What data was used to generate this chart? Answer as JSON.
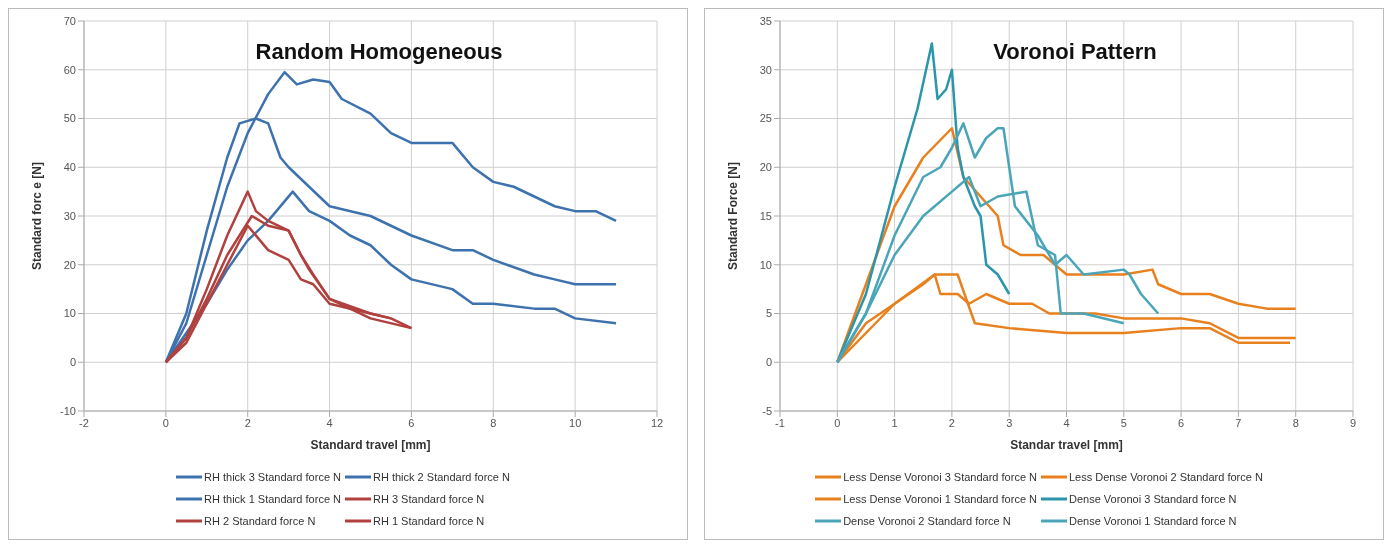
{
  "chart_data": [
    {
      "type": "line",
      "title": "Random Homogeneous",
      "xlabel": "Standard travel [mm]",
      "ylabel": "Standard forc e [N]",
      "xlim": [
        -2,
        12
      ],
      "xticks": [
        -2,
        0,
        2,
        4,
        6,
        8,
        10,
        12
      ],
      "ylim": [
        -10,
        70
      ],
      "yticks": [
        -10,
        0,
        10,
        20,
        30,
        40,
        50,
        60,
        70
      ],
      "grid": true,
      "legend": "bottom",
      "marker": "none",
      "series": [
        {
          "name": "RH thick 3 Standard force N",
          "color": "#3d72ae",
          "x": [
            0,
            0.5,
            1,
            1.5,
            2,
            2.5,
            2.9,
            3.2,
            3.6,
            4,
            4.3,
            5,
            5.5,
            6,
            7,
            7.5,
            8,
            8.5,
            9,
            9.5,
            10,
            10.5,
            11
          ],
          "values": [
            0,
            8,
            22,
            36,
            47,
            55,
            59.5,
            57,
            58,
            57.5,
            54,
            51,
            47,
            45,
            45,
            40,
            37,
            36,
            34,
            32,
            31,
            31,
            29
          ]
        },
        {
          "name": "RH thick 2 Standard force N",
          "color": "#3d72ae",
          "x": [
            0,
            0.5,
            1,
            1.5,
            1.8,
            2.2,
            2.5,
            2.8,
            3,
            3.5,
            4,
            5,
            5.5,
            6,
            7,
            7.5,
            8,
            9,
            9.5,
            10,
            11
          ],
          "values": [
            0,
            10,
            27,
            42,
            49,
            50,
            49,
            42,
            40,
            36,
            32,
            30,
            28,
            26,
            23,
            23,
            21,
            18,
            17,
            16,
            16
          ]
        },
        {
          "name": "RH thick 1 Standard force N",
          "color": "#3d72ae",
          "x": [
            0,
            0.5,
            1,
            1.5,
            2,
            2.5,
            3.1,
            3.5,
            4,
            4.5,
            5,
            5.5,
            6,
            7,
            7.5,
            8,
            9,
            9.5,
            10,
            11
          ],
          "values": [
            0,
            6,
            12,
            19,
            25,
            29,
            35,
            31,
            29,
            26,
            24,
            20,
            17,
            15,
            12,
            12,
            11,
            11,
            9,
            8
          ]
        },
        {
          "name": "RH 3 Standard force N",
          "color": "#b0413e",
          "x": [
            0,
            0.5,
            1,
            1.5,
            2,
            2.2,
            2.5,
            3,
            3.3,
            3.5,
            4,
            5,
            5.5,
            6
          ],
          "values": [
            0,
            5,
            15,
            26,
            35,
            31,
            29,
            27,
            22,
            19,
            13,
            10,
            9,
            7
          ]
        },
        {
          "name": "RH 2 Standard force N",
          "color": "#b0413e",
          "x": [
            0,
            0.5,
            1,
            1.5,
            2.1,
            2.5,
            3,
            3.3,
            3.6,
            4,
            5,
            6
          ],
          "values": [
            0,
            5,
            13,
            22,
            30,
            28,
            27,
            22,
            18,
            13,
            9,
            7
          ]
        },
        {
          "name": "RH 1 Standard force N",
          "color": "#b0413e",
          "x": [
            0,
            0.5,
            1,
            1.5,
            2,
            2.3,
            2.5,
            3,
            3.3,
            3.6,
            4,
            5,
            5.5
          ],
          "values": [
            0,
            4,
            12,
            20,
            28,
            25,
            23,
            21,
            17,
            16,
            12,
            10,
            9
          ]
        }
      ]
    },
    {
      "type": "line",
      "title": "Voronoi Pattern",
      "xlabel": "Standar travel [mm]",
      "ylabel": "Standard Force [N]",
      "xlim": [
        -1,
        9
      ],
      "xticks": [
        -1,
        0,
        1,
        2,
        3,
        4,
        5,
        6,
        7,
        8,
        9
      ],
      "ylim": [
        -5,
        35
      ],
      "yticks": [
        -5,
        0,
        5,
        10,
        15,
        20,
        25,
        30,
        35
      ],
      "grid": true,
      "legend": "bottom",
      "marker": "none",
      "series": [
        {
          "name": "Less Dense Voronoi 3 Standard force N",
          "color": "#e8801e",
          "x": [
            0,
            0.5,
            1,
            1.5,
            2,
            2.2,
            2.5,
            2.8,
            2.9,
            3.2,
            3.6,
            3.8,
            4,
            4.5,
            5,
            5.5,
            5.6,
            6,
            6.5,
            7,
            7.5,
            8
          ],
          "values": [
            0,
            8,
            16,
            21,
            24,
            19,
            17,
            15,
            12,
            11,
            11,
            10,
            9,
            9,
            9,
            9.5,
            8,
            7,
            7,
            6,
            5.5,
            5.5
          ]
        },
        {
          "name": "Less Dense Voronoi 2 Standard force N",
          "color": "#e8801e",
          "x": [
            0,
            0.5,
            1,
            1.5,
            1.7,
            1.8,
            2.1,
            2.3,
            2.6,
            3,
            3.4,
            3.7,
            4.5,
            5,
            6,
            6.5,
            7,
            8
          ],
          "values": [
            0,
            3,
            6,
            8,
            9,
            7,
            7,
            6,
            7,
            6,
            6,
            5,
            5,
            4.5,
            4.5,
            4,
            2.5,
            2.5
          ]
        },
        {
          "name": "Less Dense Voronoi 1 Standard force N",
          "color": "#e8801e",
          "x": [
            0,
            0.5,
            1,
            1.7,
            2.1,
            2.4,
            3,
            4,
            5,
            6,
            6.5,
            7,
            7.5,
            7.9
          ],
          "values": [
            0,
            4,
            6,
            9,
            9,
            4,
            3.5,
            3,
            3,
            3.5,
            3.5,
            2,
            2,
            2
          ]
        },
        {
          "name": "Dense Voronoi 3 Standard force N",
          "color": "#2b96ab",
          "x": [
            0,
            0.5,
            1,
            1.4,
            1.65,
            1.75,
            1.9,
            2,
            2.1,
            2.2,
            2.4,
            2.5,
            2.6,
            2.8,
            3
          ],
          "values": [
            0,
            7,
            18,
            26,
            32.7,
            27,
            28,
            30,
            22,
            19,
            16,
            15,
            10,
            9,
            7
          ]
        },
        {
          "name": "Dense Voronoi 2 Standard force N",
          "color": "#4aa5b9",
          "x": [
            0,
            0.5,
            1,
            1.5,
            1.8,
            2,
            2.2,
            2.4,
            2.6,
            2.8,
            2.9,
            3,
            3.1,
            3.5,
            3.8,
            4,
            4.3,
            5,
            5.1,
            5.3,
            5.6
          ],
          "values": [
            0,
            5,
            13,
            19,
            20,
            22,
            24.5,
            21,
            23,
            24,
            24,
            20,
            16,
            13,
            10,
            11,
            9,
            9.5,
            9,
            7,
            5
          ]
        },
        {
          "name": "Dense Voronoi 1 Standard force N",
          "color": "#4aa5b9",
          "x": [
            0,
            0.5,
            1,
            1.5,
            2,
            2.3,
            2.5,
            2.8,
            3.3,
            3.5,
            3.8,
            3.9,
            4.3,
            5
          ],
          "values": [
            0,
            5,
            11,
            15,
            17.5,
            19,
            16,
            17,
            17.5,
            12,
            11,
            5,
            5,
            4
          ]
        }
      ]
    }
  ]
}
